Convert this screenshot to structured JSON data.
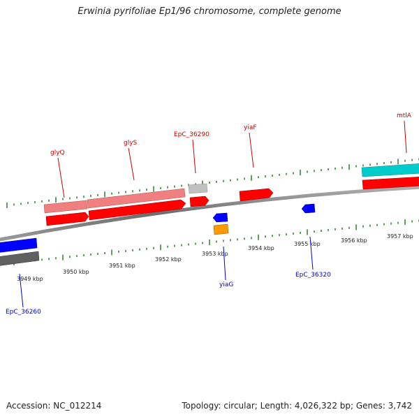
{
  "title": "Erwinia pyrifoliae Ep1/96 chromosome, complete genome",
  "footer": {
    "accession": "Accession: NC_012214",
    "summary": "Topology: circular; Length: 4,026,322 bp; Genes: 3,742"
  },
  "colors": {
    "red": "#ff0000",
    "pink": "#f08080",
    "grey": "#c0c0c0",
    "dark_grey": "#606060",
    "blue": "#0000ff",
    "orange": "#ff9900",
    "cyan": "#00cccc",
    "tick_green": "#2e7d2e",
    "label_red": "#cc0000",
    "label_blue": "#0000cc"
  },
  "ticks": [
    {
      "label": "3949 kbp"
    },
    {
      "label": "3950 kbp"
    },
    {
      "label": "3951 kbp"
    },
    {
      "label": "3952 kbp"
    },
    {
      "label": "3953 kbp"
    },
    {
      "label": "3954 kbp"
    },
    {
      "label": "3955 kbp"
    },
    {
      "label": "3956 kbp"
    },
    {
      "label": "3957 kbp"
    }
  ],
  "genes_forward": [
    {
      "name": "glyQ"
    },
    {
      "name": "glyS"
    },
    {
      "name": "EpC_36290"
    },
    {
      "name": "yiaF"
    },
    {
      "name": "mtlA"
    }
  ],
  "genes_reverse": [
    {
      "name": "EpC_36260"
    },
    {
      "name": "yiaG"
    },
    {
      "name": "EpC_36320"
    }
  ]
}
